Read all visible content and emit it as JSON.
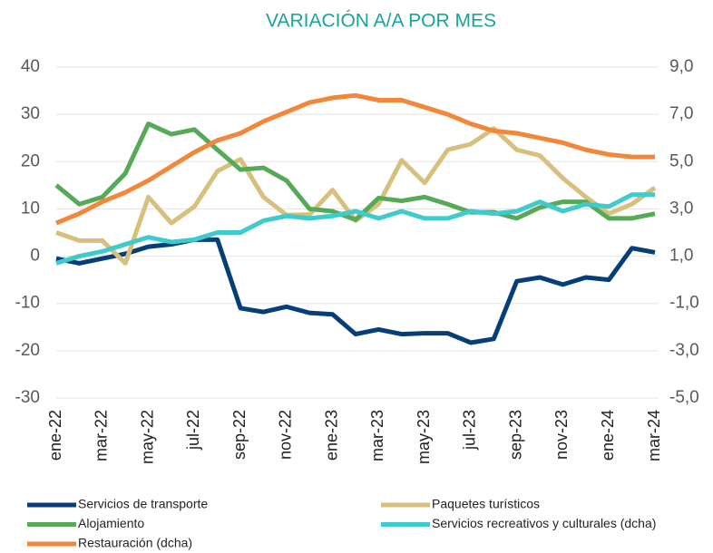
{
  "chart_data": {
    "type": "line",
    "title": "VARIACIÓN A/A POR MES",
    "categories": [
      "ene-22",
      null,
      "mar-22",
      null,
      "may-22",
      null,
      "jul-22",
      null,
      "sep-22",
      null,
      "nov-22",
      null,
      "ene-23",
      null,
      "mar-23",
      null,
      "may-23",
      null,
      "jul-23",
      null,
      "sep-23",
      null,
      "nov-23",
      null,
      "ene-24",
      null,
      "mar-24"
    ],
    "series": [
      {
        "name": "Servicios de transporte",
        "color": "#053e78",
        "values": [
          -0.5,
          -1.5,
          -0.5,
          0.5,
          2,
          2.5,
          3.5,
          3.5,
          -11,
          -11.8,
          -10.7,
          -12,
          -12.3,
          -16.5,
          -15.5,
          -16.5,
          -16.3,
          -16.3,
          -18.3,
          -17.5,
          -5.3,
          -4.5,
          -6,
          -4.5,
          -5,
          1.7,
          0.8
        ]
      },
      {
        "name": "Paquetes turísticos",
        "color": "#d8c07c",
        "values": [
          5,
          3.3,
          3.3,
          -1.5,
          12.5,
          7,
          10.5,
          18,
          20.5,
          12.5,
          8.7,
          8.8,
          14,
          7.5,
          11,
          20.3,
          15.5,
          22.5,
          23.7,
          27,
          22.5,
          21.3,
          16.5,
          12.5,
          9,
          11,
          14.5
        ]
      },
      {
        "name": "Alojamiento",
        "color": "#55a957",
        "values": [
          15,
          11,
          12.5,
          17.5,
          28,
          25.8,
          26.8,
          22.5,
          18.3,
          18.7,
          16,
          10,
          9.5,
          7.7,
          12.3,
          11.7,
          12.5,
          11,
          9.3,
          9.3,
          8,
          10.3,
          11.5,
          11.5,
          8,
          8,
          9
        ]
      },
      {
        "name": "Servicios recreativos y culturales (dcha)",
        "color": "#3ecbcb",
        "axis": "y2",
        "values": [
          0.7,
          1.0,
          1.2,
          1.5,
          1.8,
          1.6,
          1.7,
          2.0,
          2.0,
          2.5,
          2.7,
          2.6,
          2.7,
          2.9,
          2.6,
          2.9,
          2.6,
          2.6,
          2.9,
          2.8,
          2.9,
          3.3,
          2.9,
          3.2,
          3.1,
          3.6,
          3.6
        ]
      },
      {
        "name": "Restauración (dcha)",
        "color": "#f2873a",
        "axis": "y2",
        "values": [
          2.4,
          2.8,
          3.3,
          3.7,
          4.2,
          4.8,
          5.4,
          5.9,
          6.2,
          6.7,
          7.1,
          7.5,
          7.7,
          7.8,
          7.6,
          7.6,
          7.3,
          7.0,
          6.6,
          6.3,
          6.2,
          6.0,
          5.8,
          5.5,
          5.3,
          5.2,
          5.2
        ]
      }
    ],
    "ylim": [
      -30,
      40
    ],
    "yticks": [
      -30,
      -20,
      -10,
      0,
      10,
      20,
      30,
      40
    ],
    "y2lim": [
      -5,
      9
    ],
    "y2ticks": [
      {
        "value": -5,
        "label": "-5,0"
      },
      {
        "value": -3,
        "label": "-3,0"
      },
      {
        "value": -1,
        "label": "-1,0"
      },
      {
        "value": 1,
        "label": "1,0"
      },
      {
        "value": 3,
        "label": "3,0"
      },
      {
        "value": 5,
        "label": "5,0"
      },
      {
        "value": 7,
        "label": "7,0"
      },
      {
        "value": 9,
        "label": "9,0"
      }
    ],
    "grid": true
  }
}
